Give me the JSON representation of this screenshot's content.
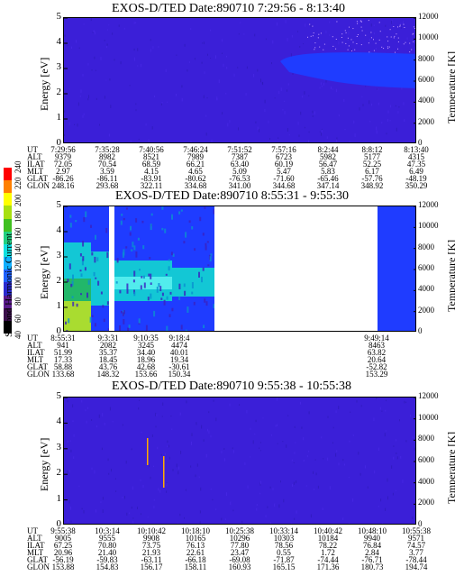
{
  "colors": {
    "background": "#3b1fd8",
    "bright_blue": "#1f3cff",
    "cyan": "#12d6d0",
    "green": "#22c45a",
    "yellow_green": "#b8e02a",
    "colorbar": [
      "#000000",
      "#3a0f4a",
      "#5a1a8c",
      "#2a2ad0",
      "#1e60ff",
      "#10b0ff",
      "#10e0e0",
      "#20d080",
      "#40c020",
      "#a8e010",
      "#ffff00",
      "#ff8000",
      "#ff0000"
    ]
  },
  "colorbar": {
    "label": "Second Harmonic Current",
    "ticks": [
      "40",
      "60",
      "80",
      "100",
      "120",
      "140",
      "160",
      "180",
      "200",
      "220",
      "240"
    ],
    "range": [
      40,
      240
    ]
  },
  "ephemeris_keys": [
    "UT",
    "ALT",
    "ILAT",
    "MLT",
    "GLAT",
    "GLON"
  ],
  "chart_data": [
    {
      "type": "heatmap",
      "title": "EXOS-D/TED  Date:890710  7:29:56 - 8:13:40",
      "ylabel": "Energy [eV]",
      "ylabel_right": "Temperature [K]",
      "ylim": [
        0,
        5
      ],
      "yticks": [
        "0",
        "1",
        "2",
        "3",
        "4",
        "5"
      ],
      "ylim_right": [
        0,
        12000
      ],
      "yticks_right": [
        "0",
        "2000",
        "4000",
        "6000",
        "8000",
        "10000",
        "12000"
      ],
      "ephemeris": [
        {
          "UT": "7:29:56",
          "ALT": "9379",
          "ILAT": "72.05",
          "MLT": "2.97",
          "GLAT": "-86.26",
          "GLON": "248.16"
        },
        {
          "UT": "7:35:28",
          "ALT": "8982",
          "ILAT": "70.54",
          "MLT": "3.59",
          "GLAT": "-86.11",
          "GLON": "293.68"
        },
        {
          "UT": "7:40:56",
          "ALT": "8521",
          "ILAT": "68.59",
          "MLT": "4.15",
          "GLAT": "-83.91",
          "GLON": "322.11"
        },
        {
          "UT": "7:46:24",
          "ALT": "7989",
          "ILAT": "66.21",
          "MLT": "4.65",
          "GLAT": "-80.62",
          "GLON": "334.68"
        },
        {
          "UT": "7:51:52",
          "ALT": "7387",
          "ILAT": "63.40",
          "MLT": "5.09",
          "GLAT": "-76.53",
          "GLON": "341.00"
        },
        {
          "UT": "7:57:16",
          "ALT": "6723",
          "ILAT": "60.19",
          "MLT": "5.47",
          "GLAT": "-71.60",
          "GLON": "344.68"
        },
        {
          "UT": "8:2:44",
          "ALT": "5982",
          "ILAT": "56.47",
          "MLT": "5.83",
          "GLAT": "-65.46",
          "GLON": "347.14"
        },
        {
          "UT": "8:8:12",
          "ALT": "5177",
          "ILAT": "52.25",
          "MLT": "6.17",
          "GLAT": "-57.76",
          "GLON": "348.92"
        },
        {
          "UT": "8:13:40",
          "ALT": "4315",
          "ILAT": "47.35",
          "MLT": "6.49",
          "GLAT": "-48.19",
          "GLON": "350.29"
        }
      ]
    },
    {
      "type": "heatmap",
      "title": "EXOS-D/TED  Date:890710  8:55:31 - 9:55:30",
      "ylabel": "Energy [eV]",
      "ylabel_right": "Temperature [K]",
      "ylim": [
        0,
        5
      ],
      "yticks": [
        "0",
        "1",
        "2",
        "3",
        "4",
        "5"
      ],
      "ylim_right": [
        0,
        12000
      ],
      "yticks_right": [
        "0",
        "2000",
        "4000",
        "6000",
        "8000",
        "10000",
        "12000"
      ],
      "ephemeris": [
        {
          "UT": "8:55:31",
          "ALT": "941",
          "ILAT": "51.99",
          "MLT": "17.33",
          "GLAT": "58.88",
          "GLON": "133.68"
        },
        {
          "UT": "9:3:31",
          "ALT": "2082",
          "ILAT": "35.37",
          "MLT": "18.45",
          "GLAT": "43.76",
          "GLON": "148.32"
        },
        {
          "UT": "9:10:35",
          "ALT": "3245",
          "ILAT": "34.40",
          "MLT": "18.96",
          "GLAT": "42.68",
          "GLON": "153.66"
        },
        {
          "UT": "9:18:4",
          "ALT": "4474",
          "ILAT": "40.01",
          "MLT": "19.34",
          "GLAT": "-30.61",
          "GLON": "150.34"
        },
        {
          "UT": "9:49:14",
          "ALT": "8463",
          "ILAT": "63.82",
          "MLT": "20.64",
          "GLAT": "-52.82",
          "GLON": "153.29"
        }
      ]
    },
    {
      "type": "heatmap",
      "title": "EXOS-D/TED  Date:890710  9:55:38 - 10:55:38",
      "ylabel": "Energy [eV]",
      "ylabel_right": "Temperature [K]",
      "ylim": [
        0,
        5
      ],
      "yticks": [
        "0",
        "1",
        "2",
        "3",
        "4",
        "5"
      ],
      "ylim_right": [
        0,
        12000
      ],
      "yticks_right": [
        "0",
        "2000",
        "4000",
        "6000",
        "8000",
        "10000",
        "12000"
      ],
      "ephemeris": [
        {
          "UT": "9:55:38",
          "ALT": "9005",
          "ILAT": "67.25",
          "MLT": "20.96",
          "GLAT": "-56.19",
          "GLON": "153.88"
        },
        {
          "UT": "10:3:14",
          "ALT": "9555",
          "ILAT": "70.80",
          "MLT": "21.40",
          "GLAT": "-59.83",
          "GLON": "154.83"
        },
        {
          "UT": "10:10:42",
          "ALT": "9908",
          "ILAT": "73.75",
          "MLT": "21.93",
          "GLAT": "-63.11",
          "GLON": "156.17"
        },
        {
          "UT": "10:18:10",
          "ALT": "10165",
          "ILAT": "76.13",
          "MLT": "22.61",
          "GLAT": "-66.18",
          "GLON": "158.11"
        },
        {
          "UT": "10:25:38",
          "ALT": "10296",
          "ILAT": "77.80",
          "MLT": "23.47",
          "GLAT": "-69.08",
          "GLON": "160.93"
        },
        {
          "UT": "10:33:14",
          "ALT": "10303",
          "ILAT": "78.56",
          "MLT": "0.55",
          "GLAT": "-71.87",
          "GLON": "165.15"
        },
        {
          "UT": "10:40:42",
          "ALT": "10184",
          "ILAT": "78.22",
          "MLT": "1.72",
          "GLAT": "-74.44",
          "GLON": "171.36"
        },
        {
          "UT": "10:48:10",
          "ALT": "9940",
          "ILAT": "76.84",
          "MLT": "2.84",
          "GLAT": "-76.71",
          "GLON": "180.73"
        },
        {
          "UT": "10:55:38",
          "ALT": "9571",
          "ILAT": "74.57",
          "MLT": "3.77",
          "GLAT": "-78.44",
          "GLON": "194.74"
        }
      ]
    }
  ]
}
